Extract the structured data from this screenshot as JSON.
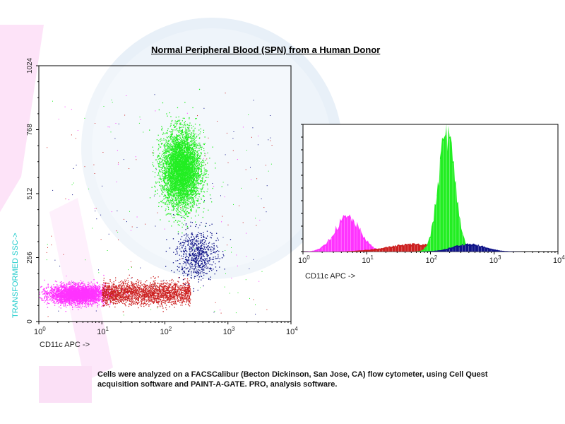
{
  "title": "Normal Peripheral Blood (SPN) from a Human Donor",
  "caption_line1": "Cells were analyzed on a FACSCalibur (Becton Dickinson, San Jose, CA) flow cytometer, using Cell Quest",
  "caption_line2": "acquisition software and PAINT-A-GATE. PRO, analysis software.",
  "colors": {
    "lymphocytes": "#ff33ff",
    "monocytes": "#cc2020",
    "granulocytes": "#22ee22",
    "eosinophils": "#101488",
    "ylabel": "#22cccc",
    "background_tint": "#fde8fa"
  },
  "chart_data": [
    {
      "type": "scatter",
      "xlabel": "CD11c APC ->",
      "ylabel": "TRANSFORMED SSC->",
      "x_scale": "log",
      "xlim": [
        1,
        10000
      ],
      "ylim": [
        0,
        1024
      ],
      "xticks": [
        {
          "value": 1,
          "base": "10",
          "exp": "0"
        },
        {
          "value": 10,
          "base": "10",
          "exp": "1"
        },
        {
          "value": 100,
          "base": "10",
          "exp": "2"
        },
        {
          "value": 1000,
          "base": "10",
          "exp": "3"
        },
        {
          "value": 10000,
          "base": "10",
          "exp": "4"
        }
      ],
      "yticks": [
        "0",
        "256",
        "512",
        "768",
        "1024"
      ],
      "series": [
        {
          "color": "#ff33ff",
          "center_x": 4,
          "center_y": 110,
          "count": 3600
        },
        {
          "color": "#cc2020",
          "center_x": 50,
          "center_y": 115,
          "count": 2200
        },
        {
          "color": "#22ee22",
          "center_x": 180,
          "center_y": 610,
          "count": 5200
        },
        {
          "color": "#101488",
          "center_x": 320,
          "center_y": 270,
          "count": 700
        }
      ]
    },
    {
      "type": "area",
      "xlabel": "CD11c APC ->",
      "x_scale": "log",
      "xlim": [
        1,
        10000
      ],
      "xticks": [
        {
          "value": 1,
          "base": "10",
          "exp": "0"
        },
        {
          "value": 10,
          "base": "10",
          "exp": "1"
        },
        {
          "value": 100,
          "base": "10",
          "exp": "2"
        },
        {
          "value": 1000,
          "base": "10",
          "exp": "3"
        },
        {
          "value": 10000,
          "base": "10",
          "exp": "4"
        }
      ],
      "series": [
        {
          "color": "#ff33ff",
          "peak_x": 5,
          "peak_height": 0.27
        },
        {
          "color": "#cc2020",
          "peak_x": 60,
          "peak_height": 0.06
        },
        {
          "color": "#22ee22",
          "peak_x": 180,
          "peak_height": 0.93
        },
        {
          "color": "#101488",
          "peak_x": 400,
          "peak_height": 0.06
        }
      ]
    }
  ]
}
